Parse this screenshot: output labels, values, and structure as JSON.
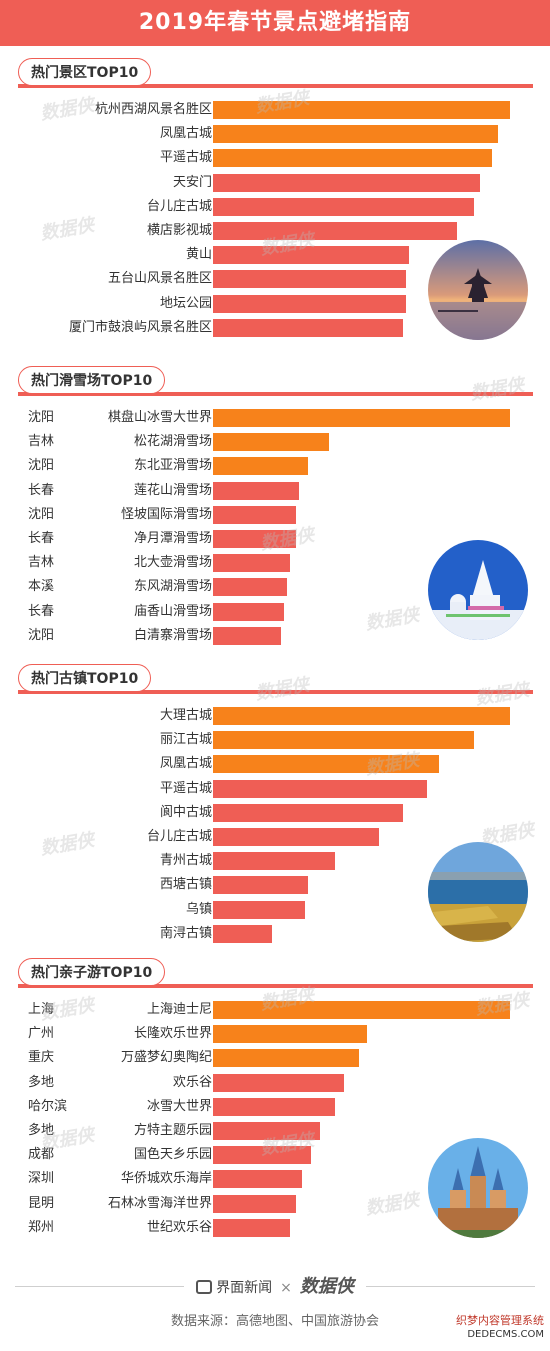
{
  "title": "2019年春节景点避堵指南",
  "colors": {
    "accent": "#ef5e55",
    "orange": "#f7821b",
    "red": "#ef5e55"
  },
  "chart_data": [
    {
      "type": "bar",
      "title": "热门景区TOP10",
      "categories": [
        "杭州西湖风景名胜区",
        "凤凰古城",
        "平遥古城",
        "天安门",
        "台儿庄古城",
        "横店影视城",
        "黄山",
        "五台山风景名胜区",
        "地坛公园",
        "厦门市鼓浪屿风景名胜区"
      ],
      "regions": [],
      "values": [
        100,
        96,
        94,
        90,
        88,
        82,
        66,
        65,
        65,
        64
      ],
      "colors": [
        "orange",
        "orange",
        "orange",
        "red",
        "red",
        "red",
        "red",
        "red",
        "red",
        "red"
      ]
    },
    {
      "type": "bar",
      "title": "热门滑雪场TOP10",
      "categories": [
        "棋盘山冰雪大世界",
        "松花湖滑雪场",
        "东北亚滑雪场",
        "莲花山滑雪场",
        "怪坡国际滑雪场",
        "净月潭滑雪场",
        "北大壶滑雪场",
        "东风湖滑雪场",
        "庙香山滑雪场",
        "白清寨滑雪场"
      ],
      "regions": [
        "沈阳",
        "吉林",
        "沈阳",
        "长春",
        "沈阳",
        "长春",
        "吉林",
        "本溪",
        "长春",
        "沈阳"
      ],
      "values": [
        100,
        39,
        32,
        29,
        28,
        28,
        26,
        25,
        24,
        23
      ],
      "colors": [
        "orange",
        "orange",
        "orange",
        "red",
        "red",
        "red",
        "red",
        "red",
        "red",
        "red"
      ]
    },
    {
      "type": "bar",
      "title": "热门古镇TOP10",
      "categories": [
        "大理古城",
        "丽江古城",
        "凤凰古城",
        "平遥古城",
        "阆中古城",
        "台儿庄古城",
        "青州古城",
        "西塘古镇",
        "乌镇",
        "南浔古镇"
      ],
      "regions": [],
      "values": [
        100,
        88,
        76,
        72,
        64,
        56,
        41,
        32,
        31,
        20
      ],
      "colors": [
        "orange",
        "orange",
        "orange",
        "red",
        "red",
        "red",
        "red",
        "red",
        "red",
        "red"
      ]
    },
    {
      "type": "bar",
      "title": "热门亲子游TOP10",
      "categories": [
        "上海迪士尼",
        "长隆欢乐世界",
        "万盛梦幻奥陶纪",
        "欢乐谷",
        "冰雪大世界",
        "方特主题乐园",
        "国色天乡乐园",
        "华侨城欢乐海岸",
        "石林冰雪海洋世界",
        "世纪欢乐谷"
      ],
      "regions": [
        "上海",
        "广州",
        "重庆",
        "多地",
        "哈尔滨",
        "多地",
        "成都",
        "深圳",
        "昆明",
        "郑州"
      ],
      "values": [
        100,
        52,
        49,
        44,
        41,
        36,
        33,
        30,
        28,
        26
      ],
      "colors": [
        "orange",
        "orange",
        "orange",
        "red",
        "red",
        "red",
        "red",
        "red",
        "red",
        "red"
      ]
    }
  ],
  "footer": {
    "brand": "界面新闻",
    "separator": "×",
    "partner": "数据侠",
    "source": "数据来源：高德地图、中国旅游协会",
    "corner_title": "织梦内容管理系统",
    "corner_url": "DEDECMS.COM"
  },
  "photos": [
    "pavilion-lake-photo",
    "snow-castle-photo",
    "lake-boats-photo",
    "disney-castle-photo"
  ]
}
